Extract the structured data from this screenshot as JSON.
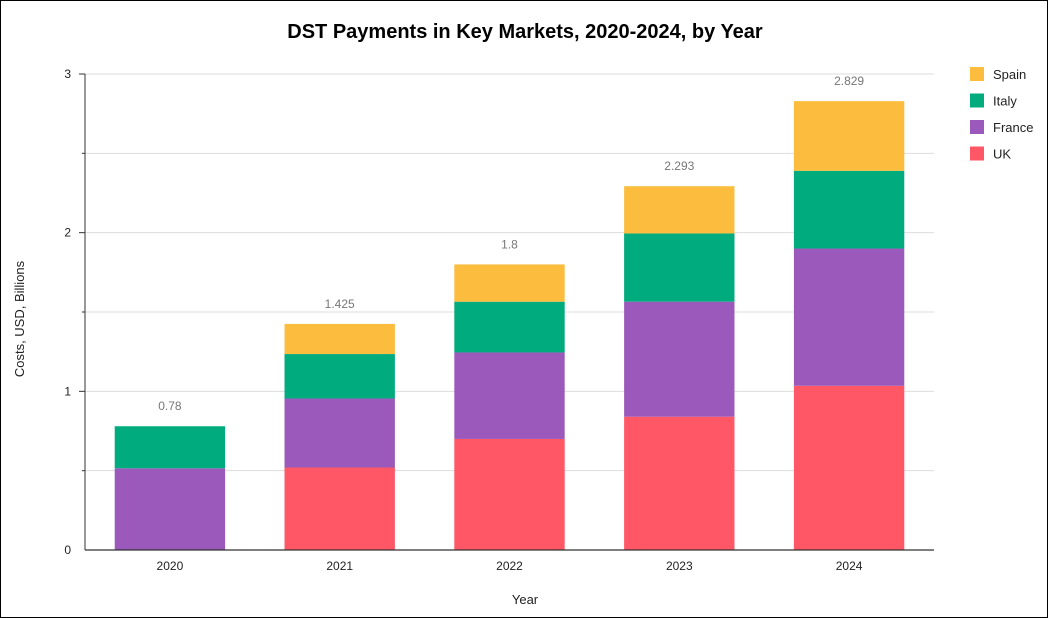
{
  "chart_data": {
    "type": "bar",
    "stacked": true,
    "title": "DST Payments in Key Markets, 2020-2024, by Year",
    "xlabel": "Year",
    "ylabel": "Costs, USD, Billions",
    "categories": [
      "2020",
      "2021",
      "2022",
      "2023",
      "2024"
    ],
    "ylim": [
      0,
      3
    ],
    "yticks": [
      "0",
      "1",
      "2",
      "3"
    ],
    "grid": true,
    "legend_position": "right",
    "series": [
      {
        "name": "UK",
        "color": "#ff5765",
        "values": [
          0,
          0.52,
          0.7,
          0.84,
          1.035
        ]
      },
      {
        "name": "France",
        "color": "#9a59bb",
        "values": [
          0.515,
          0.435,
          0.545,
          0.725,
          0.865
        ]
      },
      {
        "name": "Italy",
        "color": "#00ab7e",
        "values": [
          0.265,
          0.28,
          0.32,
          0.43,
          0.49
        ]
      },
      {
        "name": "Spain",
        "color": "#fcbd3f",
        "values": [
          0,
          0.19,
          0.235,
          0.298,
          0.439
        ]
      }
    ],
    "totals": [
      "0.78",
      "1.425",
      "1.8",
      "2.293",
      "2.829"
    ]
  }
}
